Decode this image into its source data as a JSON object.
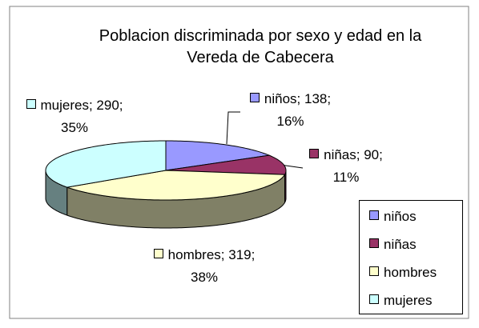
{
  "chart_data": {
    "type": "pie",
    "title": "Poblacion discriminada por sexo y edad en la Vereda de Cabecera",
    "categories": [
      "niños",
      "niñas",
      "hombres",
      "mujeres"
    ],
    "values": [
      138,
      90,
      319,
      290
    ],
    "value_labels": [
      "niños; 138; 16%",
      "niñas; 90; 11%",
      "hombres; 319; 38%",
      "mujeres; 290; 35%"
    ],
    "colors": [
      "#9999ff",
      "#993366",
      "#ffffcc",
      "#ccffff"
    ],
    "legend": "right"
  }
}
